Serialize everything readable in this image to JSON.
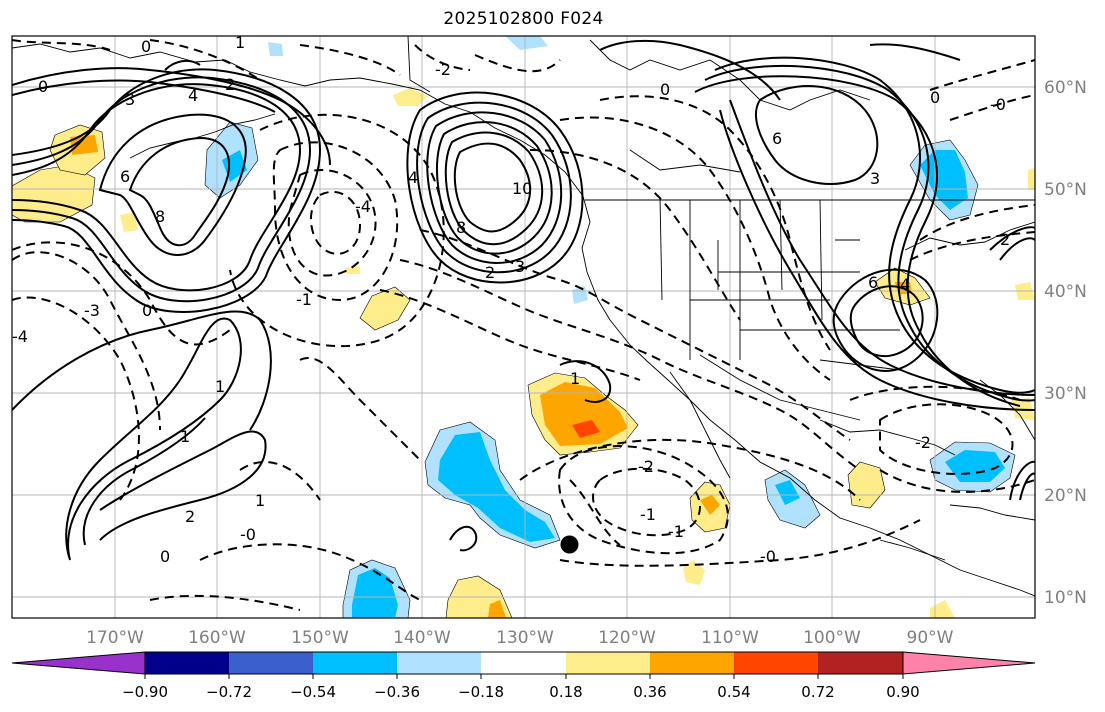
{
  "title": "2025102800 F024",
  "map": {
    "lon_range": [
      -180,
      -80
    ],
    "lat_range": [
      8,
      65
    ],
    "lon_ticks": [
      {
        "lon": -170,
        "label": "170°W"
      },
      {
        "lon": -160,
        "label": "160°W"
      },
      {
        "lon": -150,
        "label": "150°W"
      },
      {
        "lon": -140,
        "label": "140°W"
      },
      {
        "lon": -130,
        "label": "130°W"
      },
      {
        "lon": -120,
        "label": "120°W"
      },
      {
        "lon": -110,
        "label": "110°W"
      },
      {
        "lon": -100,
        "label": "100°W"
      },
      {
        "lon": -90,
        "label": "90°W"
      }
    ],
    "lat_ticks": [
      {
        "lat": 60,
        "label": "60°N"
      },
      {
        "lat": 50,
        "label": "50°N"
      },
      {
        "lat": 40,
        "label": "40°N"
      },
      {
        "lat": 30,
        "label": "30°N"
      },
      {
        "lat": 20,
        "label": "20°N"
      },
      {
        "lat": 10,
        "label": "10°N"
      }
    ],
    "marker": {
      "lon": -125.5,
      "lat": 15.2,
      "color": "#000000"
    }
  },
  "colorbar": {
    "colors": [
      "#9932cc",
      "#00008b",
      "#3a5fcd",
      "#00bfff",
      "#b0e2ff",
      "#ffffff",
      "#ffec8b",
      "#ffa500",
      "#ff4500",
      "#b22222",
      "#ff82ab"
    ],
    "labels": [
      "−0.90",
      "−0.72",
      "−0.54",
      "−0.36",
      "−0.18",
      "0.18",
      "0.36",
      "0.54",
      "0.72",
      "0.90"
    ]
  },
  "contour_labels": [
    "0",
    "0",
    "0",
    "0",
    "0",
    "0",
    "1",
    "1",
    "1",
    "1",
    "1",
    "2",
    "2",
    "2",
    "2",
    "3",
    "3",
    "3",
    "4",
    "4",
    "4",
    "6",
    "6",
    "6",
    "8",
    "8",
    "10",
    "-4",
    "-4",
    "-1",
    "-1",
    "-2",
    "-2",
    "-3",
    "-1",
    "-0",
    "-0",
    "-0",
    "-2"
  ]
}
